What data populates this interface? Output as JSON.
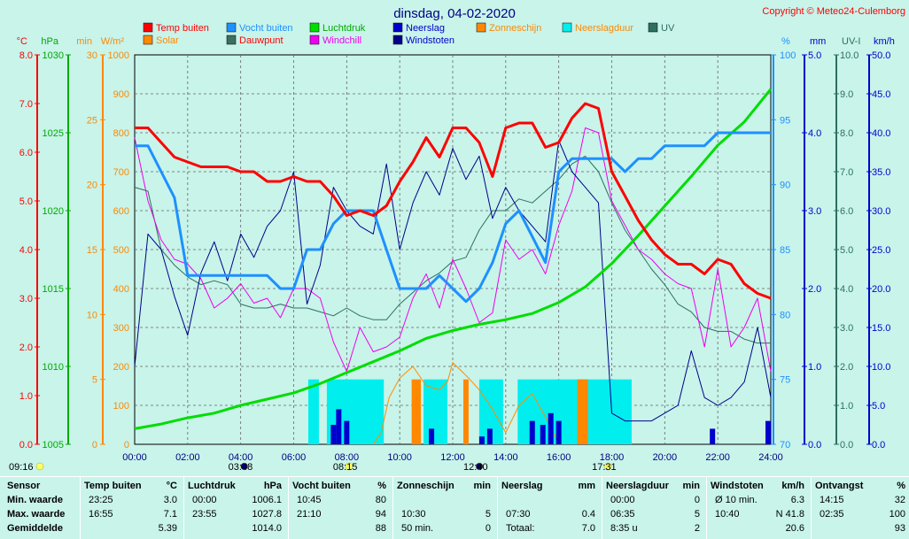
{
  "title": "dinsdag, 04-02-2020",
  "copyright": "Copyright © Meteo24-Culemborg",
  "colors": {
    "background": "#c8f4ea",
    "plot": "#c8f4ea",
    "temp": "#ff0000",
    "humidity": "#1e90ff",
    "pressure": "#00dd00",
    "rain": "#0000cc",
    "gust": "#000088",
    "sun": "#ff8800",
    "raindur": "#00eeee",
    "uv": "#2f6f5f",
    "solar": "#ff8c00",
    "dew": "#3c7060",
    "chill": "#ee00ee"
  },
  "legend": [
    {
      "label": "Temp buiten",
      "color": "#ff0000",
      "text_color": "#ff0000"
    },
    {
      "label": "Vocht buiten",
      "color": "#1e90ff",
      "text_color": "#1e90ff"
    },
    {
      "label": "Luchtdruk",
      "color": "#00dd00",
      "text_color": "#00aa00"
    },
    {
      "label": "Neerslag",
      "color": "#0000cc",
      "text_color": "#0000cc"
    },
    {
      "label": "Zonneschijn",
      "color": "#ff8800",
      "text_color": "#ff8800"
    },
    {
      "label": "Neerslagduur",
      "color": "#00eeee",
      "text_color": "#ff8800"
    },
    {
      "label": "UV",
      "color": "#2f6f5f",
      "text_color": "#2f6f5f"
    },
    {
      "label": "Solar",
      "color": "#ff8800",
      "text_color": "#ff8800"
    },
    {
      "label": "Dauwpunt",
      "color": "#3c7060",
      "text_color": "#ff0000"
    },
    {
      "label": "Windchill",
      "color": "#ee00ee",
      "text_color": "#ee00ee"
    },
    {
      "label": "Windstoten",
      "color": "#000088",
      "text_color": "#0000cc"
    }
  ],
  "axes_left": [
    {
      "unit": "°C",
      "color": "#ff0000",
      "ticks": [
        "8.0",
        "7.0",
        "6.0",
        "5.0",
        "4.0",
        "3.0",
        "2.0",
        "1.0",
        "0.0"
      ]
    },
    {
      "unit": "hPa",
      "color": "#00aa00",
      "ticks": [
        "1030",
        "1025",
        "1020",
        "1015",
        "1010",
        "1005"
      ]
    },
    {
      "unit": "min",
      "color": "#ff8800",
      "ticks": [
        "30",
        "25",
        "20",
        "15",
        "10",
        "5",
        "0"
      ]
    },
    {
      "unit": "W/m²",
      "color": "#ff8800",
      "ticks": [
        "1000",
        "900",
        "800",
        "700",
        "600",
        "500",
        "400",
        "300",
        "200",
        "100",
        "0"
      ]
    }
  ],
  "axes_right": [
    {
      "unit": "%",
      "color": "#1e90ff",
      "ticks": [
        "100",
        "95",
        "90",
        "85",
        "80",
        "75",
        "70"
      ]
    },
    {
      "unit": "mm",
      "color": "#0000cc",
      "ticks": [
        "5.0",
        "4.0",
        "3.0",
        "2.0",
        "1.0",
        "0.0"
      ]
    },
    {
      "unit": "UV-I",
      "color": "#2f6f5f",
      "ticks": [
        "10.0",
        "9.0",
        "8.0",
        "7.0",
        "6.0",
        "5.0",
        "4.0",
        "3.0",
        "2.0",
        "1.0",
        "0.0"
      ]
    },
    {
      "unit": "km/h",
      "color": "#0000cc",
      "ticks": [
        "50.0",
        "45.0",
        "40.0",
        "35.0",
        "30.0",
        "25.0",
        "20.0",
        "15.0",
        "10.0",
        "5.0",
        "0.0"
      ]
    }
  ],
  "x_ticks": [
    "00:00",
    "02:00",
    "04:00",
    "06:00",
    "08:00",
    "10:00",
    "12:00",
    "14:00",
    "16:00",
    "18:00",
    "20:00",
    "22:00",
    "24:00"
  ],
  "astro": [
    {
      "label": "09:16",
      "hour": 0.0,
      "icon": "sun"
    },
    {
      "label": "03:48",
      "hour": 3.8,
      "icon": "moonrise"
    },
    {
      "label": "08:15",
      "hour": 7.75,
      "icon": "sunrise"
    },
    {
      "label": "12:40",
      "hour": 12.67,
      "icon": "transit"
    },
    {
      "label": "17:31",
      "hour": 17.52,
      "icon": "sunset"
    }
  ],
  "chart_data": {
    "type": "line",
    "title": "dinsdag, 04-02-2020",
    "x_unit": "hour",
    "xlim": [
      0,
      24
    ],
    "series": [
      {
        "name": "Temp buiten",
        "axis": "°C",
        "ylim": [
          0,
          8
        ],
        "x": [
          0,
          0.5,
          1,
          1.5,
          2,
          2.5,
          3,
          3.5,
          4,
          4.5,
          5,
          5.5,
          6,
          6.5,
          7,
          7.5,
          8,
          8.5,
          9,
          9.5,
          10,
          10.5,
          11,
          11.5,
          12,
          12.5,
          13,
          13.5,
          14,
          14.5,
          15,
          15.5,
          16,
          16.5,
          17,
          17.5,
          18,
          18.5,
          19,
          19.5,
          20,
          20.5,
          21,
          21.5,
          22,
          22.5,
          23,
          23.5,
          24
        ],
        "values": [
          6.5,
          6.5,
          6.2,
          5.9,
          5.8,
          5.7,
          5.7,
          5.7,
          5.6,
          5.6,
          5.4,
          5.4,
          5.5,
          5.4,
          5.4,
          5.1,
          4.7,
          4.8,
          4.7,
          4.9,
          5.4,
          5.8,
          6.3,
          5.9,
          6.5,
          6.5,
          6.2,
          5.5,
          6.5,
          6.6,
          6.6,
          6.1,
          6.2,
          6.7,
          7.0,
          6.9,
          5.6,
          5.1,
          4.6,
          4.2,
          3.9,
          3.7,
          3.7,
          3.5,
          3.8,
          3.7,
          3.3,
          3.1,
          3.0
        ]
      },
      {
        "name": "Vocht buiten",
        "axis": "%",
        "ylim": [
          70,
          100
        ],
        "x": [
          0,
          0.5,
          1,
          1.5,
          2,
          2.5,
          3,
          3.5,
          4,
          4.5,
          5,
          5.5,
          6,
          6.5,
          7,
          7.5,
          8,
          8.5,
          9,
          9.5,
          10,
          10.5,
          11,
          11.5,
          12,
          12.5,
          13,
          13.5,
          14,
          14.5,
          15,
          15.5,
          16,
          16.5,
          17,
          17.5,
          18,
          18.5,
          19,
          19.5,
          20,
          20.5,
          21,
          21.5,
          22,
          22.5,
          23,
          23.5,
          24
        ],
        "values": [
          93,
          93,
          91,
          89,
          83,
          83,
          83,
          83,
          83,
          83,
          83,
          82,
          82,
          85,
          85,
          87,
          88,
          88,
          88,
          85,
          82,
          82,
          82,
          83,
          82,
          81,
          82,
          84,
          87,
          88,
          86,
          84,
          91,
          92,
          92,
          92,
          92,
          91,
          92,
          92,
          93,
          93,
          93,
          93,
          94,
          94,
          94,
          94,
          94
        ]
      },
      {
        "name": "Luchtdruk",
        "axis": "hPa",
        "ylim": [
          1005,
          1030
        ],
        "x": [
          0,
          1,
          2,
          3,
          4,
          5,
          6,
          7,
          8,
          9,
          10,
          11,
          12,
          13,
          14,
          15,
          16,
          17,
          18,
          19,
          20,
          21,
          22,
          23,
          24
        ],
        "values": [
          1006.0,
          1006.3,
          1006.7,
          1007.0,
          1007.5,
          1007.9,
          1008.3,
          1008.9,
          1009.6,
          1010.3,
          1011.0,
          1011.8,
          1012.3,
          1012.7,
          1013.0,
          1013.4,
          1014.1,
          1015.1,
          1016.6,
          1018.4,
          1020.3,
          1022.2,
          1024.2,
          1025.7,
          1027.8
        ]
      },
      {
        "name": "Windstoten",
        "axis": "km/h",
        "ylim": [
          0,
          50
        ],
        "x": [
          0,
          0.5,
          1,
          1.5,
          2,
          2.5,
          3,
          3.5,
          4,
          4.5,
          5,
          5.5,
          6,
          6.5,
          7,
          7.5,
          8,
          8.5,
          9,
          9.5,
          10,
          10.5,
          11,
          11.5,
          12,
          12.5,
          13,
          13.5,
          14,
          14.5,
          15,
          15.5,
          16,
          16.5,
          17,
          17.5,
          18,
          18.5,
          19,
          19.5,
          20,
          20.5,
          21,
          21.5,
          22,
          22.5,
          23,
          23.5,
          24
        ],
        "values": [
          10,
          27,
          25,
          19,
          14,
          22,
          26,
          21,
          27,
          24,
          28,
          30,
          35,
          18,
          23,
          33,
          30,
          28,
          27,
          36,
          25,
          31,
          35,
          32,
          38,
          34,
          37,
          29,
          33,
          30,
          28,
          26,
          39,
          35,
          33,
          31,
          4,
          3,
          3,
          3,
          4,
          5,
          12,
          6,
          5,
          6,
          8,
          15,
          6
        ]
      },
      {
        "name": "Windchill",
        "axis": "°C",
        "ylim": [
          0,
          8
        ],
        "x": [
          0,
          0.5,
          1,
          1.5,
          2,
          2.5,
          3,
          3.5,
          4,
          4.5,
          5,
          5.5,
          6,
          6.5,
          7,
          7.5,
          8,
          8.5,
          9,
          9.5,
          10,
          10.5,
          11,
          11.5,
          12,
          12.5,
          13,
          13.5,
          14,
          14.5,
          15,
          15.5,
          16,
          16.5,
          17,
          17.5,
          18,
          18.5,
          19,
          19.5,
          20,
          20.5,
          21,
          21.5,
          22,
          22.5,
          23,
          23.5,
          24
        ],
        "values": [
          6.3,
          5.0,
          4.2,
          3.8,
          3.7,
          3.4,
          2.8,
          3.0,
          3.3,
          2.9,
          3.0,
          2.6,
          3.2,
          3.2,
          3.0,
          2.1,
          1.5,
          2.4,
          1.9,
          2.0,
          2.2,
          3.0,
          3.5,
          2.8,
          3.8,
          3.2,
          2.5,
          2.7,
          4.2,
          3.8,
          4.0,
          3.5,
          4.5,
          5.2,
          6.5,
          6.4,
          5.0,
          4.5,
          4.0,
          3.8,
          3.5,
          3.3,
          3.2,
          2.0,
          3.6,
          2.0,
          2.4,
          3.0,
          1.5
        ]
      },
      {
        "name": "UV",
        "axis": "UV-I",
        "ylim": [
          0,
          10
        ],
        "x": [
          0,
          0.5,
          1,
          1.5,
          2,
          2.5,
          3,
          3.5,
          4,
          4.5,
          5,
          5.5,
          6,
          6.5,
          7,
          7.5,
          8,
          8.5,
          9,
          9.5,
          10,
          10.5,
          11,
          11.5,
          12,
          12.5,
          13,
          13.5,
          14,
          14.5,
          15,
          15.5,
          16,
          16.5,
          17,
          17.5,
          18,
          18.5,
          19,
          19.5,
          20,
          20.5,
          21,
          21.5,
          22,
          22.5,
          23,
          23.5,
          24
        ],
        "values": [
          6.6,
          6.5,
          5.0,
          4.6,
          4.3,
          4.1,
          4.2,
          4.1,
          3.6,
          3.5,
          3.5,
          3.6,
          3.5,
          3.5,
          3.4,
          3.3,
          3.5,
          3.3,
          3.2,
          3.2,
          3.6,
          3.9,
          4.2,
          4.4,
          4.7,
          4.8,
          5.5,
          6.0,
          6.0,
          6.3,
          6.2,
          6.5,
          6.8,
          7.2,
          7.4,
          7.0,
          6.2,
          5.5,
          5.0,
          4.5,
          4.1,
          3.6,
          3.4,
          3.0,
          2.9,
          2.9,
          2.7,
          2.6,
          2.6
        ]
      },
      {
        "name": "Solar",
        "axis": "W/m²",
        "ylim": [
          0,
          1000
        ],
        "x": [
          9.0,
          9.3,
          9.6,
          10.0,
          10.5,
          11.0,
          11.5,
          11.8,
          12.0,
          12.3,
          12.6,
          13.0,
          13.5,
          14.0,
          14.5,
          15.0,
          15.5,
          16.0
        ],
        "values": [
          0,
          30,
          120,
          170,
          200,
          150,
          140,
          160,
          210,
          190,
          170,
          140,
          90,
          30,
          100,
          130,
          70,
          0
        ]
      },
      {
        "name": "Neerslag",
        "axis": "mm",
        "ylim": [
          0,
          5
        ],
        "x": [
          7.5,
          7.7,
          8.0,
          11.2,
          13.1,
          13.4,
          15.0,
          15.4,
          15.7,
          16.0,
          21.8,
          23.9
        ],
        "values": [
          0.25,
          0.45,
          0.3,
          0.2,
          0.1,
          0.2,
          0.3,
          0.25,
          0.4,
          0.3,
          0.2,
          0.3
        ]
      },
      {
        "name": "Neerslagduur",
        "axis": "min",
        "intervals": [
          [
            6.55,
            6.95
          ],
          [
            7.25,
            9.4
          ],
          [
            10.9,
            11.8
          ],
          [
            13.0,
            13.9
          ],
          [
            14.45,
            18.75
          ]
        ]
      },
      {
        "name": "Zonneschijn",
        "axis": "min",
        "intervals": [
          [
            10.45,
            10.8
          ],
          [
            12.4,
            12.6
          ],
          [
            16.7,
            17.1
          ]
        ]
      }
    ]
  },
  "stats": {
    "headers": {
      "sensor": "Sensor",
      "temp": "Temp buiten",
      "temp_unit": "°C",
      "press": "Luchtdruk",
      "press_unit": "hPa",
      "hum": "Vocht buiten",
      "hum_unit": "%",
      "sun": "Zonneschijn",
      "sun_unit": "min",
      "rain": "Neerslag",
      "rain_unit": "mm",
      "raindur": "Neerslagduur",
      "raindur_unit": "min",
      "gust": "Windstoten",
      "gust_unit": "km/h",
      "recv": "Ontvangst",
      "recv_unit": "%"
    },
    "rows": [
      {
        "label": "Min. waarde",
        "temp_t": "23:25",
        "temp_v": "3.0",
        "press_t": "00:00",
        "press_v": "1006.1",
        "hum_t": "10:45",
        "hum_v": "80",
        "sun_t": "",
        "sun_v": "",
        "rain_t": "",
        "rain_v": "",
        "raindur_t": "00:00",
        "raindur_v": "0",
        "gust_t": "Ø 10 min.",
        "gust_v": "6.3",
        "recv_t": "14:15",
        "recv_v": "32"
      },
      {
        "label": "Max. waarde",
        "temp_t": "16:55",
        "temp_v": "7.1",
        "press_t": "23:55",
        "press_v": "1027.8",
        "hum_t": "21:10",
        "hum_v": "94",
        "sun_t": "10:30",
        "sun_v": "5",
        "rain_t": "07:30",
        "rain_v": "0.4",
        "raindur_t": "06:35",
        "raindur_v": "5",
        "gust_t": "10:40",
        "gust_v": "N 41.8",
        "recv_t": "02:35",
        "recv_v": "100"
      },
      {
        "label": "Gemiddelde",
        "temp_t": "",
        "temp_v": "5.39",
        "press_t": "",
        "press_v": "1014.0",
        "hum_t": "",
        "hum_v": "88",
        "sun_t": "50 min.",
        "sun_v": "0",
        "rain_t": "Totaal:",
        "rain_v": "7.0",
        "raindur_t": "8:35 u",
        "raindur_v": "2",
        "gust_t": "",
        "gust_v": "20.6",
        "recv_t": "",
        "recv_v": "93"
      }
    ]
  }
}
